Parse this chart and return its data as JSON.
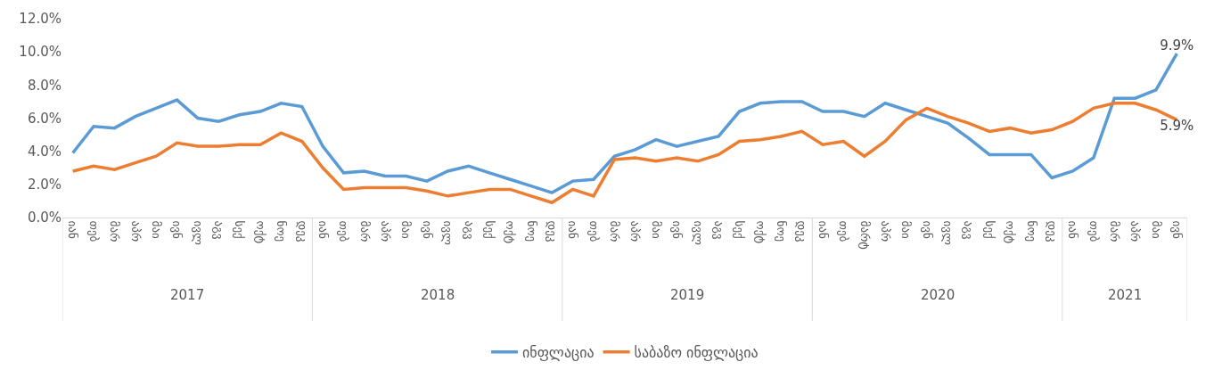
{
  "chart_data": {
    "type": "line",
    "categories": [
      "იან",
      "თებ",
      "მარ",
      "აპრ",
      "მაი",
      "ივნ",
      "ივლ",
      "აგვ",
      "სექ",
      "ოქტ",
      "ნოე",
      "დეკ",
      "იან",
      "თებ",
      "მარ",
      "აპრ",
      "მაი",
      "ივნ",
      "ივლ",
      "აგვ",
      "სექ",
      "ოქტ",
      "ნოე",
      "დეკ",
      "იან",
      "თებ",
      "მარ",
      "აპრ",
      "მაი",
      "ივნ",
      "ივლ",
      "აგვ",
      "სექ",
      "ოქტ",
      "ნოე",
      "დეკ",
      "იან",
      "თებ",
      "მარტ",
      "აპრ",
      "მაი",
      "ივნ",
      "ივლ",
      "აგვ",
      "სექ",
      "ოქტ",
      "ნოე",
      "დეკ",
      "იან",
      "თებ",
      "მარ",
      "აპრ",
      "მაი",
      "ივნ"
    ],
    "series": [
      {
        "name": "ინფლაცია",
        "color": "#5b9bd5",
        "values": [
          3.9,
          5.5,
          5.4,
          6.1,
          6.6,
          7.1,
          6.0,
          5.8,
          6.2,
          6.4,
          6.9,
          6.7,
          4.3,
          2.7,
          2.8,
          2.5,
          2.5,
          2.2,
          2.8,
          3.1,
          2.7,
          2.3,
          1.9,
          1.5,
          2.2,
          2.3,
          3.7,
          4.1,
          4.7,
          4.3,
          4.6,
          4.9,
          6.4,
          6.9,
          7.0,
          7.0,
          6.4,
          6.4,
          6.1,
          6.9,
          6.5,
          6.1,
          5.7,
          4.8,
          3.8,
          3.8,
          3.8,
          2.4,
          2.8,
          3.6,
          7.2,
          7.2,
          7.7,
          9.9
        ],
        "value_labels": [
          null,
          null,
          null,
          null,
          null,
          null,
          null,
          null,
          null,
          null,
          null,
          null,
          null,
          null,
          null,
          null,
          null,
          null,
          null,
          null,
          null,
          null,
          null,
          null,
          null,
          null,
          null,
          null,
          null,
          null,
          null,
          null,
          null,
          null,
          null,
          null,
          null,
          null,
          null,
          null,
          null,
          null,
          null,
          null,
          null,
          null,
          null,
          null,
          null,
          null,
          null,
          null,
          null,
          "9.9%"
        ]
      },
      {
        "name": "საბაზო ინფლაცია",
        "color": "#ed7d31",
        "values": [
          2.8,
          3.1,
          2.9,
          3.3,
          3.7,
          4.5,
          4.3,
          4.3,
          4.4,
          4.4,
          5.1,
          4.6,
          3.0,
          1.7,
          1.8,
          1.8,
          1.8,
          1.6,
          1.3,
          1.5,
          1.7,
          1.7,
          1.3,
          0.9,
          1.7,
          1.3,
          3.5,
          3.6,
          3.4,
          3.6,
          3.4,
          3.8,
          4.6,
          4.7,
          4.9,
          5.2,
          4.4,
          4.6,
          3.7,
          4.6,
          5.9,
          6.6,
          6.1,
          5.7,
          5.2,
          5.4,
          5.1,
          5.3,
          5.8,
          6.6,
          6.9,
          6.9,
          6.5,
          5.9
        ],
        "value_labels": [
          null,
          null,
          null,
          null,
          null,
          null,
          null,
          null,
          null,
          null,
          null,
          null,
          null,
          null,
          null,
          null,
          null,
          null,
          null,
          null,
          null,
          null,
          null,
          null,
          null,
          null,
          null,
          null,
          null,
          null,
          null,
          null,
          null,
          null,
          null,
          null,
          null,
          null,
          null,
          null,
          null,
          null,
          null,
          null,
          null,
          null,
          null,
          null,
          null,
          null,
          null,
          null,
          null,
          "5.9%"
        ]
      }
    ],
    "annotations": [
      "2017",
      "2018",
      "2019",
      "2020",
      "2021"
    ],
    "ylim": [
      0,
      12
    ],
    "yticks": [
      {
        "value": 0,
        "label": "0.0%"
      },
      {
        "value": 2,
        "label": "2.0%"
      },
      {
        "value": 4,
        "label": "4.0%"
      },
      {
        "value": 6,
        "label": "6.0%"
      },
      {
        "value": 8,
        "label": "8.0%"
      },
      {
        "value": 10,
        "label": "10.0%"
      },
      {
        "value": 12,
        "label": "12.0%"
      }
    ],
    "grid": false,
    "legend": "bottom",
    "marker": "none",
    "line_style": "solid"
  }
}
